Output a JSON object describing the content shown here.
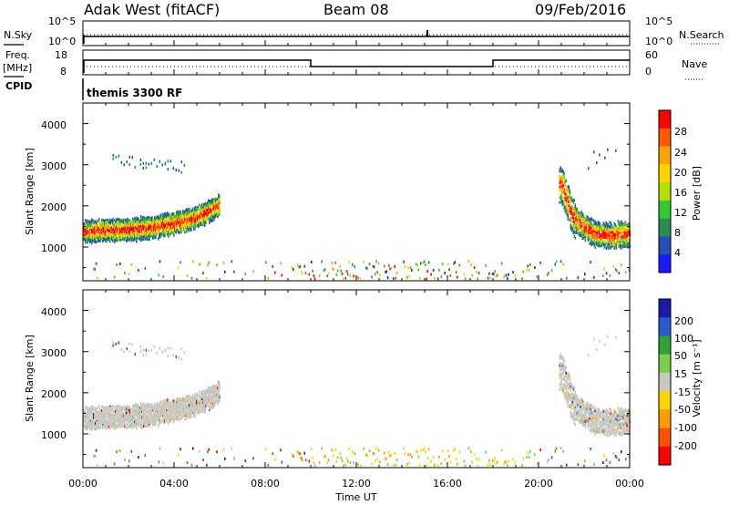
{
  "header": {
    "radar": "Adak West (fitACF)",
    "beam": "Beam 08",
    "date": "09/Feb/2016"
  },
  "left_labels": {
    "nsky": "N.Sky",
    "freq": "Freq.",
    "freq_unit": "[MHz]",
    "cpid": "CPID"
  },
  "right_labels": {
    "nsearch": "N.Search",
    "nave": "Nave"
  },
  "cpid_text": "themis 3300 RF",
  "noise_axis": {
    "left_ticks": [
      "10^5",
      "10^0"
    ],
    "right_ticks": [
      "10^5",
      "10^0"
    ]
  },
  "freq_axis": {
    "left_ticks": [
      "18",
      "8"
    ],
    "right_ticks": [
      "60",
      "0"
    ]
  },
  "x_axis": {
    "label": "Time UT",
    "ticks": [
      "00:00",
      "04:00",
      "08:00",
      "12:00",
      "16:00",
      "20:00",
      "00:00"
    ]
  },
  "power_panel": {
    "ylabel": "Slant Range [km]",
    "yticks": [
      "4000",
      "3000",
      "2000",
      "1000"
    ],
    "cbar_label": "Power [dB]",
    "cbar_ticks": [
      "28",
      "24",
      "20",
      "16",
      "12",
      "8",
      "4"
    ],
    "cbar_colors": [
      "#ff0000",
      "#ff5a00",
      "#ffa500",
      "#ffd400",
      "#b6e000",
      "#32c832",
      "#2e8b57",
      "#2850b4",
      "#1a1aff"
    ]
  },
  "velocity_panel": {
    "ylabel": "Slant Range [km]",
    "yticks": [
      "4000",
      "3000",
      "2000",
      "1000"
    ],
    "cbar_label": "Velocity [m s⁻¹]",
    "cbar_ticks": [
      "200",
      "100",
      "50",
      "15",
      "-15",
      "-50",
      "-100",
      "-200"
    ],
    "cbar_colors": [
      "#1a1aaa",
      "#2a5ad0",
      "#32a032",
      "#7ad04a",
      "#c8c8c0",
      "#ffd400",
      "#ff9a00",
      "#ff5000",
      "#ff0000"
    ]
  },
  "chart_data": [
    {
      "type": "line",
      "title": "N.Sky / N.Search",
      "x_range_hours": [
        0,
        24
      ],
      "notes": "near-constant noise traces with a spike near 15:00 UT",
      "series": [
        {
          "name": "N.Sky",
          "x": [
            0,
            24
          ],
          "y": [
            1,
            1
          ]
        },
        {
          "name": "N.Search",
          "x": [
            0,
            24
          ],
          "y": [
            1,
            1
          ]
        }
      ]
    },
    {
      "type": "line",
      "title": "Freq. / Nave",
      "x_range_hours": [
        0,
        24
      ],
      "series": [
        {
          "name": "Freq.",
          "x": [
            0,
            10,
            10,
            18,
            18,
            24
          ],
          "y": [
            13,
            13,
            10.5,
            10.5,
            13,
            13
          ]
        },
        {
          "name": "Nave",
          "x": [
            0,
            24
          ],
          "y": [
            20,
            20
          ]
        }
      ]
    },
    {
      "type": "heatmap",
      "title": "Power",
      "xlabel": "Time UT",
      "ylabel": "Slant Range [km]",
      "xlim": [
        0,
        24
      ],
      "ylim": [
        180,
        4500
      ],
      "zlabel": "Power [dB]",
      "zlim": [
        0,
        32
      ],
      "features": [
        {
          "name": "morning band",
          "t": [
            0,
            1,
            2,
            3,
            4,
            5,
            6
          ],
          "range_km": [
            1350,
            1380,
            1400,
            1450,
            1550,
            1700,
            2000
          ]
        },
        {
          "name": "evening band",
          "t": [
            21.0,
            21.5,
            22,
            22.5,
            23,
            24
          ],
          "range_km": [
            2500,
            1700,
            1450,
            1300,
            1250,
            1300
          ]
        }
      ]
    },
    {
      "type": "heatmap",
      "title": "Velocity",
      "xlabel": "Time UT",
      "ylabel": "Slant Range [km]",
      "xlim": [
        0,
        24
      ],
      "ylim": [
        180,
        4500
      ],
      "zlabel": "Velocity [m s⁻¹]",
      "zlim": [
        -200,
        200
      ]
    }
  ]
}
